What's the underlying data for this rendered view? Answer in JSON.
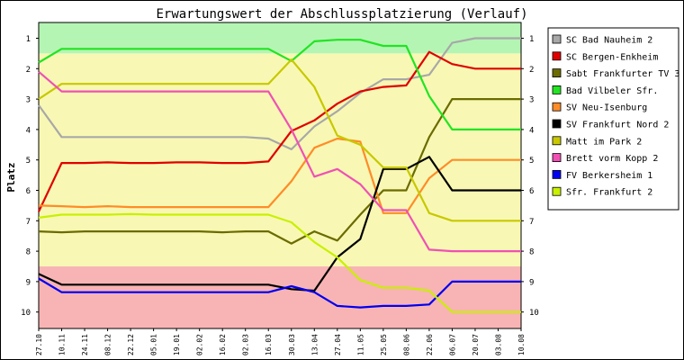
{
  "chart_data": {
    "type": "line",
    "title": "Erwartungswert der Abschlussplatzierung (Verlauf)",
    "ylabel": "Platz",
    "xlabel": "",
    "ylim": [
      1,
      10
    ],
    "y_inverted": true,
    "y_ticks": [
      "1",
      "2",
      "3",
      "4",
      "5",
      "6",
      "7",
      "8",
      "9",
      "10"
    ],
    "categories": [
      "27.10",
      "10.11",
      "24.11",
      "08.12",
      "22.12",
      "05.01",
      "19.01",
      "02.02",
      "16.02",
      "02.03",
      "16.03",
      "30.03",
      "13.04",
      "27.04",
      "11.05",
      "25.05",
      "08.06",
      "22.06",
      "06.07",
      "20.07",
      "03.08",
      "10.08"
    ],
    "grid": false,
    "legend_position": "right",
    "bands": [
      {
        "name": "promotion",
        "color": "#b4f5b4"
      },
      {
        "name": "midfield",
        "color": "#f8f8b4"
      },
      {
        "name": "relegation",
        "color": "#f8b4b4"
      }
    ],
    "series": [
      {
        "name": "SC Bad Nauheim 2",
        "color": "#a8a8a8",
        "values": [
          3.2,
          4.25,
          4.25,
          4.25,
          4.25,
          4.25,
          4.25,
          4.25,
          4.25,
          4.25,
          4.3,
          4.65,
          3.9,
          3.4,
          2.8,
          2.35,
          2.35,
          2.2,
          1.15,
          1.0,
          1.0,
          1.0
        ]
      },
      {
        "name": "SC Bergen-Enkheim",
        "color": "#e00000",
        "values": [
          6.7,
          5.1,
          5.1,
          5.08,
          5.1,
          5.1,
          5.08,
          5.08,
          5.1,
          5.1,
          5.05,
          4.05,
          3.7,
          3.15,
          2.75,
          2.6,
          2.55,
          1.45,
          1.85,
          2.0,
          2.0,
          2.0
        ]
      },
      {
        "name": "Sabt Frankfurter TV 3",
        "color": "#6b6b00",
        "values": [
          7.35,
          7.38,
          7.35,
          7.35,
          7.35,
          7.35,
          7.35,
          7.35,
          7.38,
          7.35,
          7.35,
          7.75,
          7.35,
          7.65,
          6.8,
          6.0,
          6.0,
          4.25,
          3.0,
          3.0,
          3.0,
          3.0
        ]
      },
      {
        "name": "Bad Vilbeler Sfr.",
        "color": "#22e422",
        "values": [
          1.8,
          1.35,
          1.35,
          1.35,
          1.35,
          1.35,
          1.35,
          1.35,
          1.35,
          1.35,
          1.35,
          1.75,
          1.1,
          1.05,
          1.05,
          1.25,
          1.25,
          2.9,
          4.0,
          4.0,
          4.0,
          4.0
        ]
      },
      {
        "name": "SV Neu-Isenburg",
        "color": "#ff8c28",
        "values": [
          6.5,
          6.52,
          6.55,
          6.52,
          6.55,
          6.55,
          6.55,
          6.55,
          6.55,
          6.55,
          6.55,
          5.7,
          4.6,
          4.3,
          4.4,
          6.75,
          6.75,
          5.6,
          5.0,
          5.0,
          5.0,
          5.0
        ]
      },
      {
        "name": "SV Frankfurt Nord 2",
        "color": "#000000",
        "values": [
          8.75,
          9.1,
          9.1,
          9.1,
          9.1,
          9.1,
          9.1,
          9.1,
          9.1,
          9.1,
          9.1,
          9.25,
          9.3,
          8.2,
          7.6,
          5.3,
          5.3,
          4.9,
          6.0,
          6.0,
          6.0,
          6.0
        ]
      },
      {
        "name": "Matt im Park 2",
        "color": "#c8c800",
        "values": [
          3.0,
          2.5,
          2.5,
          2.5,
          2.5,
          2.5,
          2.5,
          2.5,
          2.5,
          2.5,
          2.5,
          1.7,
          2.6,
          4.2,
          4.5,
          5.25,
          5.25,
          6.75,
          7.0,
          7.0,
          7.0,
          7.0
        ]
      },
      {
        "name": "Brett vorm Kopp 2",
        "color": "#f050b4",
        "values": [
          2.1,
          2.75,
          2.75,
          2.75,
          2.75,
          2.75,
          2.75,
          2.75,
          2.75,
          2.75,
          2.75,
          4.0,
          5.55,
          5.3,
          5.8,
          6.65,
          6.65,
          7.95,
          8.0,
          8.0,
          8.0,
          8.0
        ]
      },
      {
        "name": "FV Berkersheim 1",
        "color": "#0000f0",
        "values": [
          8.9,
          9.35,
          9.35,
          9.35,
          9.35,
          9.35,
          9.35,
          9.35,
          9.35,
          9.35,
          9.35,
          9.15,
          9.35,
          9.8,
          9.85,
          9.8,
          9.8,
          9.75,
          9.0,
          9.0,
          9.0,
          9.0
        ]
      },
      {
        "name": "Sfr. Frankfurt 2",
        "color": "#c8f000",
        "values": [
          6.9,
          6.8,
          6.8,
          6.8,
          6.78,
          6.8,
          6.8,
          6.8,
          6.8,
          6.8,
          6.8,
          7.05,
          7.7,
          8.2,
          8.95,
          9.2,
          9.2,
          9.3,
          10.0,
          10.0,
          10.0,
          10.0
        ]
      }
    ]
  }
}
